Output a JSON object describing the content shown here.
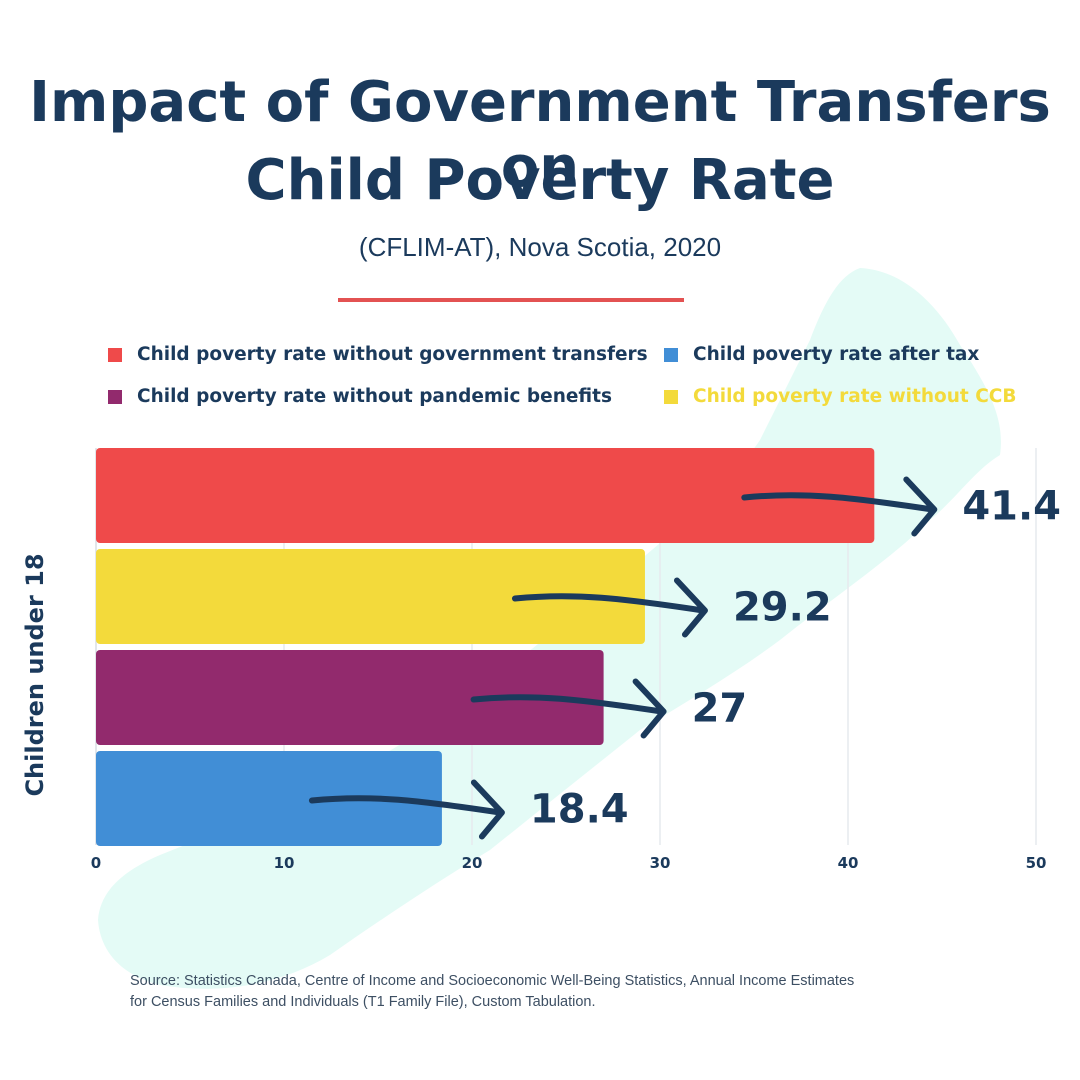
{
  "header": {
    "title_line1": "Impact of Government Transfers on",
    "title_line2": "Child Poverty Rate",
    "subtitle": "(CFLIM-AT), Nova Scotia, 2020"
  },
  "colors": {
    "title": "#1b3a5c",
    "accent_rule": "#e35252",
    "map_background": "#e4fbf6",
    "gridline": "#e6eaee"
  },
  "legend": [
    {
      "label": "Child poverty rate without government transfers",
      "color": "#ef4a4a",
      "text_color": "#1b3a5c"
    },
    {
      "label": "Child poverty rate after tax",
      "color": "#418ed6",
      "text_color": "#1b3a5c"
    },
    {
      "label": "Child poverty rate without pandemic benefits",
      "color": "#922a6d",
      "text_color": "#1b3a5c"
    },
    {
      "label": "Child poverty rate without CCB",
      "color": "#f3da3b",
      "text_color": "#f3da3b"
    }
  ],
  "chart_data": {
    "type": "bar",
    "orientation": "horizontal",
    "title": "Impact of Government Transfers on Child Poverty Rate",
    "subtitle": "(CFLIM-AT), Nova Scotia, 2020",
    "ylabel": "Children under 18",
    "xlabel": "",
    "xlim": [
      0,
      50
    ],
    "x_ticks": [
      0,
      10,
      20,
      30,
      40,
      50
    ],
    "grid": "vertical",
    "legend_position": "top",
    "series": [
      {
        "name": "Child poverty rate without government transfers",
        "value": 41.4,
        "label": "41.4",
        "color": "#ef4a4a"
      },
      {
        "name": "Child poverty rate without CCB",
        "value": 29.2,
        "label": "29.2",
        "color": "#f3da3b"
      },
      {
        "name": "Child poverty rate without pandemic benefits",
        "value": 27,
        "label": "27",
        "color": "#922a6d"
      },
      {
        "name": "Child poverty rate after tax",
        "value": 18.4,
        "label": "18.4",
        "color": "#418ed6"
      }
    ]
  },
  "footer": {
    "source_line1": "Source: Statistics Canada, Centre of Income and Socioeconomic Well-Being Statistics, Annual Income Estimates",
    "source_line2": "for Census Families and Individuals (T1 Family File), Custom Tabulation."
  }
}
